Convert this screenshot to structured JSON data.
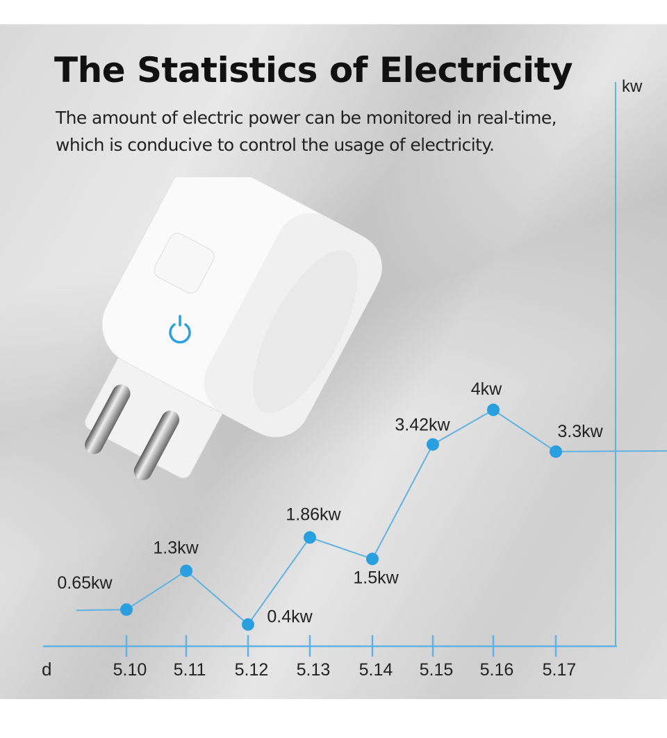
{
  "header": {
    "title": "The Statistics of Electricity",
    "subtitle_line1": "The amount of electric power can be monitored in real-time,",
    "subtitle_line2": "which is conducive to control the usage of electricity."
  },
  "colors": {
    "accent": "#2a9fdf",
    "line": "#5fb2e2",
    "text": "#111111"
  },
  "product": {
    "button_icon": "power-icon"
  },
  "chart_data": {
    "type": "line",
    "title": "",
    "xlabel": "d",
    "ylabel": "kw",
    "categories": [
      "5.10",
      "5.11",
      "5.12",
      "5.13",
      "5.14",
      "5.15",
      "5.16",
      "5.17"
    ],
    "values": [
      0.65,
      1.3,
      0.4,
      1.86,
      1.5,
      3.42,
      4,
      3.3
    ],
    "data_labels": [
      "0.65kw",
      "1.3kw",
      "0.4kw",
      "1.86kw",
      "1.5kw",
      "3.42kw",
      "4kw",
      "3.3kw"
    ],
    "grid": false,
    "legend": "none"
  }
}
